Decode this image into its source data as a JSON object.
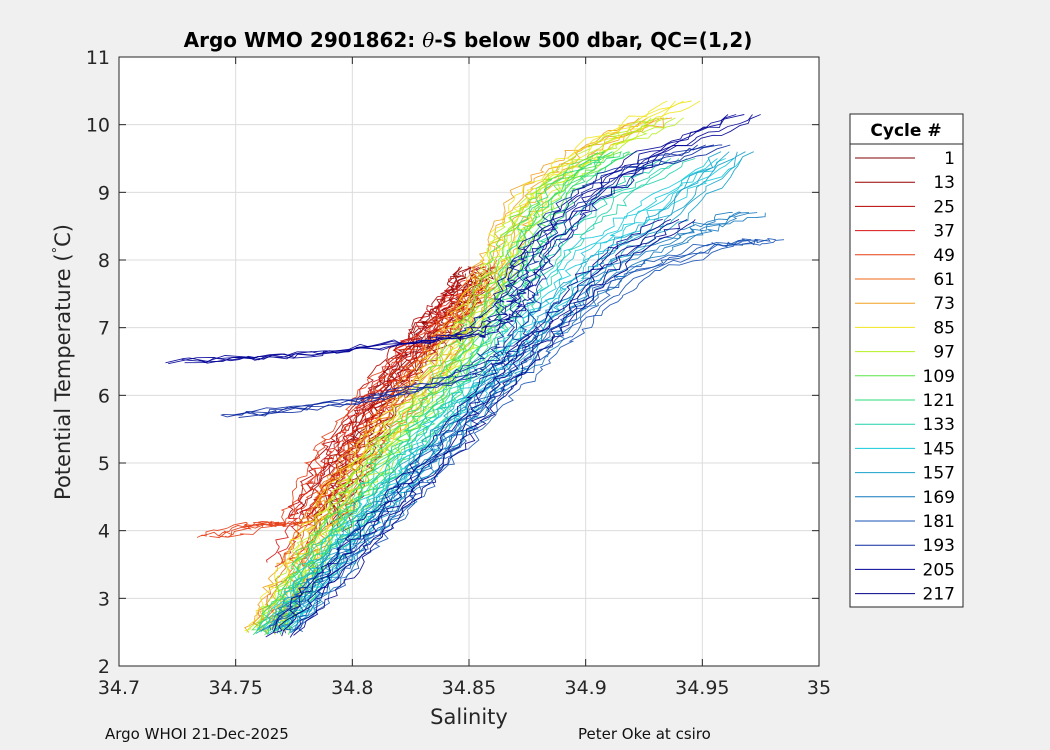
{
  "colors": {
    "figure_bg": "#f0f0f0",
    "axes_bg": "#ffffff",
    "grid": "#dcdcdc",
    "axis": "#262626"
  },
  "chart_data": {
    "type": "line",
    "title_prefix": "Argo WMO 2901862: ",
    "title_symbol": "θ",
    "title_suffix": "-S below 500 dbar,  QC=(1,2)",
    "xlabel": "Salinity",
    "ylabel_text": "Potential Temperature (",
    "ylabel_degree": "°",
    "ylabel_unit": "C)",
    "xlim": [
      34.7,
      35
    ],
    "ylim": [
      2,
      11
    ],
    "xticks": [
      34.7,
      34.75,
      34.8,
      34.85,
      34.9,
      34.95,
      35
    ],
    "xtick_labels": [
      "34.7",
      "34.75",
      "34.8",
      "34.85",
      "34.9",
      "34.95",
      "35"
    ],
    "yticks": [
      2,
      3,
      4,
      5,
      6,
      7,
      8,
      9,
      10,
      11
    ],
    "ytick_labels": [
      "2",
      "3",
      "4",
      "5",
      "6",
      "7",
      "8",
      "9",
      "10",
      "11"
    ],
    "grid": true,
    "legend": {
      "title": "Cycle #",
      "placement": "outside-right",
      "entries": [
        {
          "label": "1",
          "color": "#800000"
        },
        {
          "label": "13",
          "color": "#960000"
        },
        {
          "label": "25",
          "color": "#b40000"
        },
        {
          "label": "37",
          "color": "#d71414"
        },
        {
          "label": "49",
          "color": "#e63c14"
        },
        {
          "label": "61",
          "color": "#f06414"
        },
        {
          "label": "73",
          "color": "#f0a01e"
        },
        {
          "label": "85",
          "color": "#f0e61e"
        },
        {
          "label": "97",
          "color": "#b4f01e"
        },
        {
          "label": "109",
          "color": "#5ae646"
        },
        {
          "label": "121",
          "color": "#28dc78"
        },
        {
          "label": "133",
          "color": "#1ed2aa"
        },
        {
          "label": "145",
          "color": "#14c8dc"
        },
        {
          "label": "157",
          "color": "#14a0c8"
        },
        {
          "label": "169",
          "color": "#1478be"
        },
        {
          "label": "181",
          "color": "#1450b4"
        },
        {
          "label": "193",
          "color": "#0a28a0"
        },
        {
          "label": "205",
          "color": "#000096"
        },
        {
          "label": "217",
          "color": "#00008c"
        }
      ]
    },
    "series": [
      {
        "cycle": 1,
        "color": "#800000",
        "s": [
          34.79,
          34.798,
          34.805,
          34.815,
          34.826,
          34.838,
          34.846,
          34.852
        ],
        "t": [
          4.0,
          4.7,
          5.3,
          6.0,
          6.5,
          7.0,
          7.4,
          7.8
        ]
      },
      {
        "cycle": 13,
        "color": "#960000",
        "s": [
          34.784,
          34.794,
          34.803,
          34.814,
          34.825,
          34.837,
          34.847,
          34.853
        ],
        "t": [
          4.1,
          4.8,
          5.4,
          6.0,
          6.6,
          7.1,
          7.5,
          7.9
        ]
      },
      {
        "cycle": 25,
        "color": "#b40000",
        "s": [
          34.778,
          34.788,
          34.798,
          34.81,
          34.822,
          34.835,
          34.846,
          34.854
        ],
        "t": [
          4.2,
          4.8,
          5.4,
          6.0,
          6.6,
          7.1,
          7.5,
          7.9
        ]
      },
      {
        "cycle": 37,
        "color": "#d71414",
        "s": [
          34.771,
          34.78,
          34.79,
          34.8,
          34.812,
          34.826,
          34.84,
          34.852
        ],
        "t": [
          3.5,
          4.1,
          4.7,
          5.3,
          5.9,
          6.6,
          7.2,
          7.7
        ]
      },
      {
        "cycle": 49,
        "color": "#e63c14",
        "s": [
          34.74,
          34.76,
          34.775,
          34.785,
          34.792,
          34.805,
          34.82,
          34.838,
          34.852
        ],
        "t": [
          3.9,
          4.1,
          4.1,
          4.7,
          5.2,
          5.8,
          6.4,
          7.0,
          7.6
        ]
      },
      {
        "cycle": 61,
        "color": "#f06414",
        "s": [
          34.764,
          34.773,
          34.782,
          34.792,
          34.806,
          34.822,
          34.838,
          34.852,
          34.862
        ],
        "t": [
          2.6,
          3.2,
          3.8,
          4.5,
          5.2,
          5.9,
          6.7,
          7.4,
          8.0
        ]
      },
      {
        "cycle": 73,
        "color": "#f0a01e",
        "s": [
          34.762,
          34.772,
          34.782,
          34.794,
          34.808,
          34.825,
          34.842,
          34.856,
          34.866,
          34.878,
          34.9,
          34.93
        ],
        "t": [
          2.5,
          3.2,
          3.9,
          4.6,
          5.3,
          6.0,
          6.8,
          7.6,
          8.4,
          9.1,
          9.6,
          10.1
        ]
      },
      {
        "cycle": 85,
        "color": "#f0e61e",
        "s": [
          34.762,
          34.773,
          34.784,
          34.797,
          34.811,
          34.828,
          34.845,
          34.858,
          34.868,
          34.882,
          34.905,
          34.942
        ],
        "t": [
          2.5,
          3.2,
          3.9,
          4.6,
          5.3,
          6.0,
          6.8,
          7.6,
          8.4,
          9.1,
          9.7,
          10.35
        ]
      },
      {
        "cycle": 97,
        "color": "#b4f01e",
        "s": [
          34.763,
          34.775,
          34.787,
          34.8,
          34.815,
          34.832,
          34.848,
          34.86,
          34.87,
          34.885,
          34.91,
          34.935
        ],
        "t": [
          2.5,
          3.2,
          3.9,
          4.6,
          5.3,
          6.0,
          6.8,
          7.6,
          8.4,
          9.1,
          9.7,
          10.1
        ]
      },
      {
        "cycle": 109,
        "color": "#5ae646",
        "s": [
          34.764,
          34.776,
          34.789,
          34.803,
          34.818,
          34.835,
          34.85,
          34.862,
          34.872,
          34.888,
          34.912
        ],
        "t": [
          2.5,
          3.2,
          3.9,
          4.6,
          5.3,
          6.0,
          6.8,
          7.6,
          8.4,
          9.1,
          9.6
        ]
      },
      {
        "cycle": 121,
        "color": "#28dc78",
        "s": [
          34.765,
          34.778,
          34.792,
          34.807,
          34.823,
          34.84,
          34.856,
          34.868,
          34.878,
          34.892,
          34.915
        ],
        "t": [
          2.5,
          3.2,
          3.9,
          4.6,
          5.3,
          6.0,
          6.8,
          7.6,
          8.4,
          9.1,
          9.6
        ]
      },
      {
        "cycle": 133,
        "color": "#1ed2aa",
        "s": [
          34.766,
          34.78,
          34.795,
          34.811,
          34.828,
          34.845,
          34.862,
          34.876,
          34.89,
          34.91,
          34.94
        ],
        "t": [
          2.5,
          3.2,
          3.9,
          4.6,
          5.3,
          6.0,
          6.8,
          7.6,
          8.3,
          8.9,
          9.5
        ]
      },
      {
        "cycle": 145,
        "color": "#14c8dc",
        "s": [
          34.767,
          34.782,
          34.798,
          34.815,
          34.832,
          34.85,
          34.868,
          34.884,
          34.9,
          34.925,
          34.96
        ],
        "t": [
          2.5,
          3.2,
          3.9,
          4.6,
          5.3,
          6.0,
          6.7,
          7.4,
          8.1,
          8.7,
          9.5
        ]
      },
      {
        "cycle": 157,
        "color": "#14a0c8",
        "s": [
          34.768,
          34.784,
          34.801,
          34.819,
          34.837,
          34.855,
          34.873,
          34.89,
          34.908,
          34.935,
          34.965
        ],
        "t": [
          2.5,
          3.2,
          3.9,
          4.6,
          5.3,
          6.0,
          6.7,
          7.4,
          8.0,
          8.6,
          9.6
        ]
      },
      {
        "cycle": 169,
        "color": "#1478be",
        "s": [
          34.769,
          34.786,
          34.804,
          34.822,
          34.84,
          34.858,
          34.876,
          34.894,
          34.914,
          34.945,
          34.97
        ],
        "t": [
          2.5,
          3.2,
          3.9,
          4.6,
          5.3,
          6.0,
          6.6,
          7.3,
          7.9,
          8.4,
          8.7
        ]
      },
      {
        "cycle": 181,
        "color": "#1450b4",
        "s": [
          34.77,
          34.788,
          34.806,
          34.825,
          34.843,
          34.862,
          34.88,
          34.9,
          34.92,
          34.955,
          34.978
        ],
        "t": [
          2.5,
          3.2,
          3.9,
          4.6,
          5.3,
          6.0,
          6.6,
          7.2,
          7.8,
          8.2,
          8.3
        ]
      },
      {
        "cycle": 193,
        "color": "#0a28a0",
        "s": [
          34.75,
          34.8,
          34.84,
          34.86,
          34.87,
          34.872,
          34.878,
          34.892,
          34.915,
          34.955
        ],
        "t": [
          5.7,
          5.9,
          6.2,
          6.5,
          6.8,
          7.4,
          8.0,
          8.7,
          9.3,
          9.7
        ]
      },
      {
        "cycle": 205,
        "color": "#000096",
        "s": [
          34.727,
          34.78,
          34.83,
          34.852,
          34.865,
          34.87,
          34.88,
          34.9,
          34.93,
          34.968
        ],
        "t": [
          6.5,
          6.6,
          6.8,
          6.9,
          7.2,
          7.6,
          8.2,
          8.9,
          9.6,
          10.15
        ]
      },
      {
        "cycle": 217,
        "color": "#00008c",
        "s": [
          34.77,
          34.788,
          34.806,
          34.824,
          34.842,
          34.858,
          34.876,
          34.895,
          34.915,
          34.94
        ],
        "t": [
          2.45,
          3.2,
          3.9,
          4.6,
          5.3,
          6.0,
          6.7,
          7.4,
          8.1,
          8.6
        ]
      }
    ]
  },
  "footer": {
    "left": "Argo WHOI 21-Dec-2025",
    "right": "Peter Oke at csiro"
  }
}
